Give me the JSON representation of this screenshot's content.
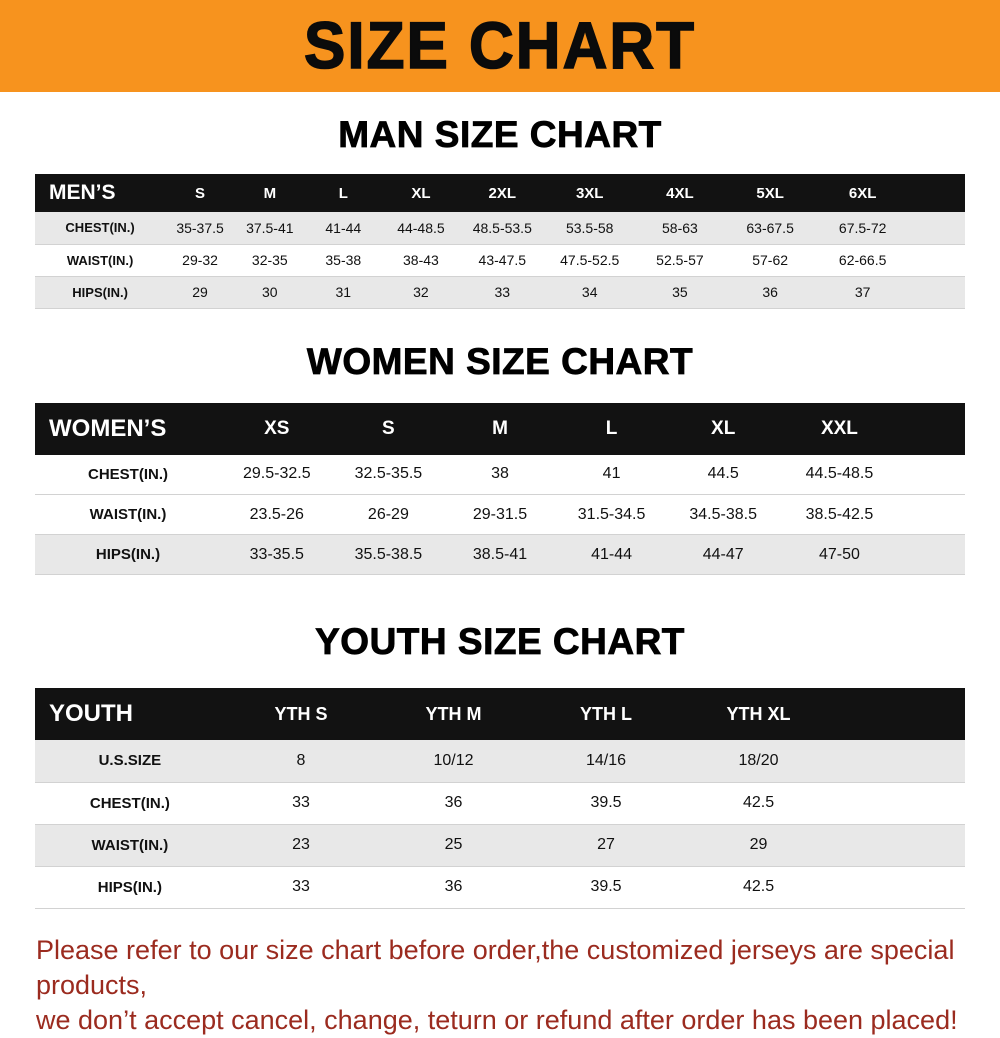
{
  "banner": {
    "title": "SIZE CHART"
  },
  "sections": [
    {
      "heading": "MAN SIZE CHART",
      "table": {
        "header": [
          "MEN’S",
          "S",
          "M",
          "L",
          "XL",
          "2XL",
          "3XL",
          "4XL",
          "5XL",
          "6XL"
        ],
        "rows": [
          [
            "CHEST(IN.)",
            "35-37.5",
            "37.5-41",
            "41-44",
            "44-48.5",
            "48.5-53.5",
            "53.5-58",
            "58-63",
            "63-67.5",
            "67.5-72"
          ],
          [
            "WAIST(IN.)",
            "29-32",
            "32-35",
            "35-38",
            "38-43",
            "43-47.5",
            "47.5-52.5",
            "52.5-57",
            "57-62",
            "62-66.5"
          ],
          [
            "HIPS(IN.)",
            "29",
            "30",
            "31",
            "32",
            "33",
            "34",
            "35",
            "36",
            "37"
          ]
        ]
      }
    },
    {
      "heading": "WOMEN SIZE CHART",
      "table": {
        "header": [
          "WOMEN’S",
          "XS",
          "S",
          "M",
          "L",
          "XL",
          "XXL"
        ],
        "rows": [
          [
            "CHEST(IN.)",
            "29.5-32.5",
            "32.5-35.5",
            "38",
            "41",
            "44.5",
            "44.5-48.5"
          ],
          [
            "WAIST(IN.)",
            "23.5-26",
            "26-29",
            "29-31.5",
            "31.5-34.5",
            "34.5-38.5",
            "38.5-42.5"
          ],
          [
            "HIPS(IN.)",
            "33-35.5",
            "35.5-38.5",
            "38.5-41",
            "41-44",
            "44-47",
            "47-50"
          ]
        ]
      }
    },
    {
      "heading": "YOUTH SIZE CHART",
      "table": {
        "header": [
          "YOUTH",
          "YTH S",
          "YTH M",
          "YTH L",
          "YTH XL"
        ],
        "rows": [
          [
            "U.S.SIZE",
            "8",
            "10/12",
            "14/16",
            "18/20"
          ],
          [
            "CHEST(IN.)",
            "33",
            "36",
            "39.5",
            "42.5"
          ],
          [
            "WAIST(IN.)",
            "23",
            "25",
            "27",
            "29"
          ],
          [
            "HIPS(IN.)",
            "33",
            "36",
            "39.5",
            "42.5"
          ]
        ]
      }
    }
  ],
  "footer": {
    "line1": "Please refer to our size chart before order,the customized jerseys are special products,",
    "line2": "we don’t accept cancel, change, teturn or refund after order has been placed!"
  },
  "colors": {
    "banner_bg": "#f7931e",
    "header_bg": "#121212",
    "stripe": "#e8e8e8",
    "footer_text": "#9b2b1f"
  }
}
